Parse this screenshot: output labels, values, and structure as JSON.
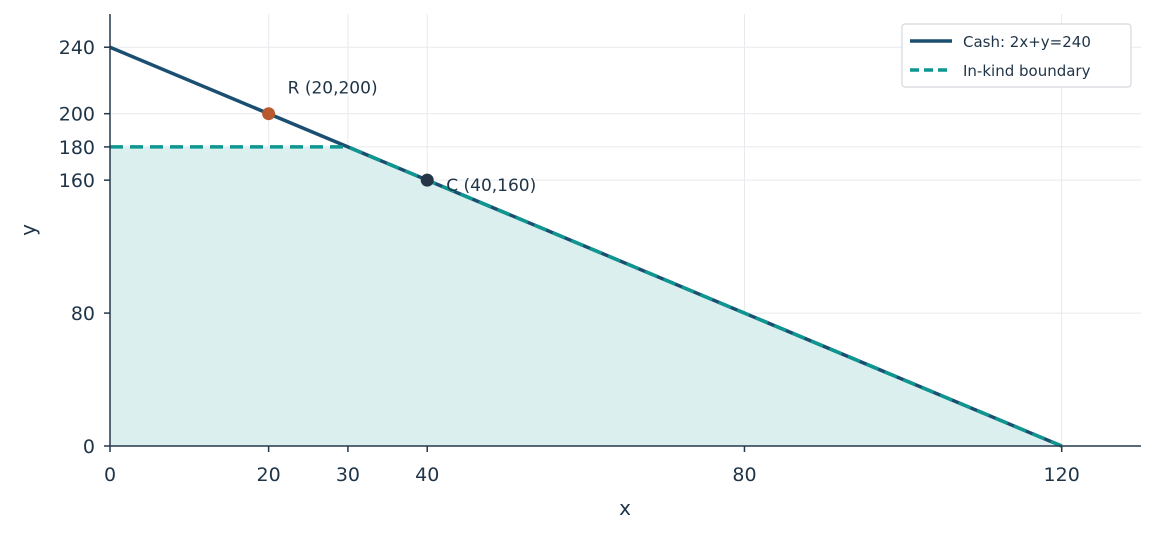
{
  "chart_data": {
    "type": "line",
    "xlabel": "x",
    "ylabel": "y",
    "xlim": [
      0,
      130
    ],
    "ylim": [
      0,
      260
    ],
    "xticks": [
      0,
      20,
      30,
      40,
      80,
      120
    ],
    "yticks": [
      0,
      80,
      160,
      180,
      200,
      240
    ],
    "grid": true,
    "legend_position": "top-right",
    "series": [
      {
        "name": "Cash: 2x+y=240",
        "style": "solid",
        "color": "#1b4f72",
        "x": [
          0,
          120
        ],
        "y": [
          240,
          0
        ]
      },
      {
        "name": "In-kind boundary",
        "style": "dashed",
        "color": "#0e9690",
        "x": [
          0,
          30,
          120
        ],
        "y": [
          180,
          180,
          0
        ]
      }
    ],
    "shaded_region": {
      "color": "#dcefef",
      "x": [
        0,
        0,
        30,
        120
      ],
      "y": [
        0,
        180,
        180,
        0
      ]
    },
    "points": [
      {
        "label": "R (20,200)",
        "x": 20,
        "y": 200,
        "color": "#b85a2e",
        "label_position": "above-right"
      },
      {
        "label": "C (40,160)",
        "x": 40,
        "y": 160,
        "color": "#263545",
        "label_position": "right"
      }
    ]
  }
}
